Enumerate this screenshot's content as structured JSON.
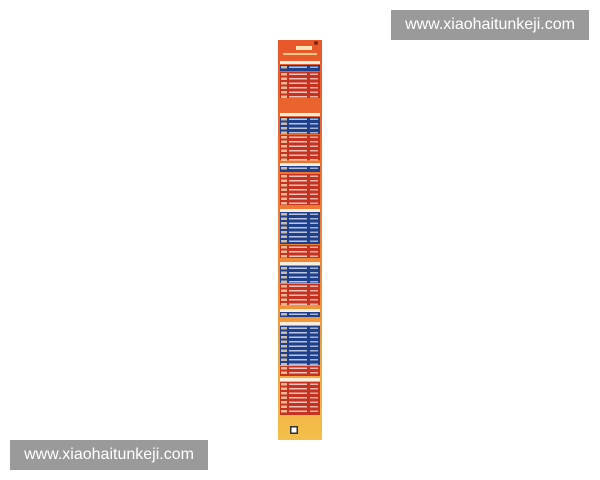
{
  "watermarks": [
    "www.xiaohaitunkeji.com",
    "www.xiaohaitunkeji.com"
  ]
}
